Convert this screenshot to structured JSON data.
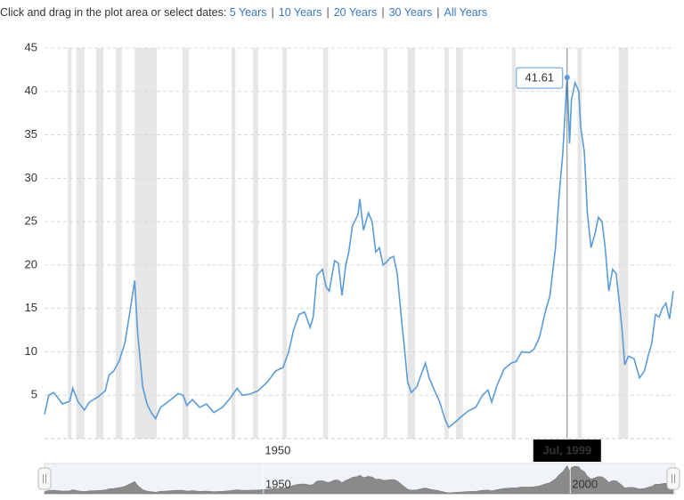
{
  "toolbar": {
    "prompt": "Click and drag in the plot area or select dates:",
    "links": [
      "5 Years",
      "10 Years",
      "20 Years",
      "30 Years",
      "All Years"
    ]
  },
  "chart_data": {
    "type": "line",
    "color": "#5b9bd8",
    "x": [
      1914.3,
      1915.0,
      1915.8,
      1916.6,
      1917.2,
      1918.4,
      1918.9,
      1919.8,
      1920.8,
      1921.6,
      1923.0,
      1924.2,
      1924.8,
      1925.6,
      1926.5,
      1927.4,
      1928.2,
      1929.0,
      1929.5,
      1930.3,
      1931.0,
      1931.7,
      1932.4,
      1933.2,
      1934.0,
      1934.9,
      1936.1,
      1936.9,
      1937.5,
      1938.4,
      1939.6,
      1940.7,
      1941.9,
      1943.3,
      1944.5,
      1945.7,
      1946.5,
      1947.7,
      1949.1,
      1950.6,
      1952.0,
      1953.2,
      1954.1,
      1954.9,
      1955.8,
      1956.7,
      1957.6,
      1958.1,
      1958.7,
      1959.6,
      1960.2,
      1960.7,
      1961.6,
      1962.2,
      1962.8,
      1963.4,
      1963.9,
      1964.5,
      1965.4,
      1965.7,
      1966.3,
      1967.1,
      1967.7,
      1968.3,
      1968.9,
      1969.5,
      1970.0,
      1970.6,
      1971.2,
      1971.8,
      1972.4,
      1972.6,
      1972.9,
      1973.5,
      1974.1,
      1975.0,
      1975.8,
      1976.4,
      1977.0,
      1977.9,
      1978.7,
      1979.6,
      1980.2,
      1981.1,
      1982.2,
      1983.4,
      1984.6,
      1985.7,
      1986.6,
      1987.2,
      1988.0,
      1989.2,
      1990.4,
      1991.2,
      1992.1,
      1993.3,
      1994.1,
      1995.0,
      1995.9,
      1996.7,
      1997.6,
      1998.2,
      1998.8,
      1999.4,
      1999.5,
      1999.9,
      2000.2,
      2000.8,
      2001.4,
      2001.7,
      2002.3,
      2002.8,
      2003.4,
      2004.0,
      2004.6,
      2005.2,
      2005.7,
      2006.3,
      2006.9,
      2007.5,
      2008.4,
      2008.9,
      2009.5,
      2010.4,
      2011.3,
      2012.1,
      2012.7,
      2013.3,
      2013.9,
      2014.5,
      2015.0,
      2015.6,
      2016.2,
      2016.8
    ],
    "values": [
      2.8,
      5,
      5.3,
      4.6,
      4.0,
      4.3,
      5.8,
      4.2,
      3.3,
      4.2,
      4.8,
      5.5,
      7.3,
      7.8,
      9.0,
      11,
      14.5,
      18.2,
      12,
      6,
      4,
      3,
      2.3,
      3.6,
      4,
      4.5,
      5.2,
      5,
      3.8,
      4.5,
      3.6,
      4,
      3,
      3.6,
      4.6,
      5.8,
      5,
      5.1,
      5.5,
      6.5,
      7.8,
      8.2,
      10,
      12.5,
      14.3,
      14.6,
      12.8,
      14,
      18.8,
      19.5,
      17.5,
      17,
      20.5,
      20.2,
      16.5,
      20,
      21.5,
      24.5,
      25.8,
      27.6,
      24,
      26,
      25,
      21.5,
      22,
      20,
      20.3,
      20.8,
      21,
      19,
      14.5,
      13,
      11,
      6.5,
      5.3,
      6,
      7.6,
      8.7,
      7,
      5.5,
      4.3,
      2.2,
      1.3,
      1.8,
      2.5,
      3.2,
      3.6,
      5,
      5.6,
      4.2,
      6,
      8,
      8.7,
      8.9,
      10,
      9.9,
      10.3,
      11.7,
      14.5,
      16.5,
      22,
      28,
      33,
      40.5,
      41.61,
      34,
      39,
      41,
      40,
      36,
      33,
      26,
      22,
      23.5,
      25.5,
      25,
      22,
      17,
      19.5,
      19,
      13,
      8.5,
      9.5,
      9.2,
      7,
      7.8,
      9.5,
      11,
      14.3,
      14,
      15,
      15.6,
      13.8,
      17
    ],
    "xlim": [
      1914.3,
      2017.1
    ],
    "xticks": [
      1950
    ],
    "ylim": [
      0,
      45
    ],
    "yticks": [
      5,
      10,
      15,
      20,
      25,
      30,
      35,
      40,
      45
    ],
    "grid": true,
    "recessions": [
      [
        1918.1,
        1918.7
      ],
      [
        1919.5,
        1920.8
      ],
      [
        1922.7,
        1923.9
      ],
      [
        1925.9,
        1926.9
      ],
      [
        1929.0,
        1932.6
      ],
      [
        1936.8,
        1937.8
      ],
      [
        1944.8,
        1945.4
      ],
      [
        1948.3,
        1949.1
      ],
      [
        1953.1,
        1953.8
      ],
      [
        1959.7,
        1960.5
      ],
      [
        1969.6,
        1970.2
      ],
      [
        1973.5,
        1974.7
      ],
      [
        1979.5,
        1980.2
      ],
      [
        1981.4,
        1982.5
      ],
      [
        1990.5,
        1991.1
      ],
      [
        2001.2,
        2001.9
      ],
      [
        2007.9,
        2009.4
      ]
    ],
    "tooltip": {
      "x_label": "Jul, 1999"
    },
    "navigator_xticks": [
      1950,
      2000
    ]
  }
}
